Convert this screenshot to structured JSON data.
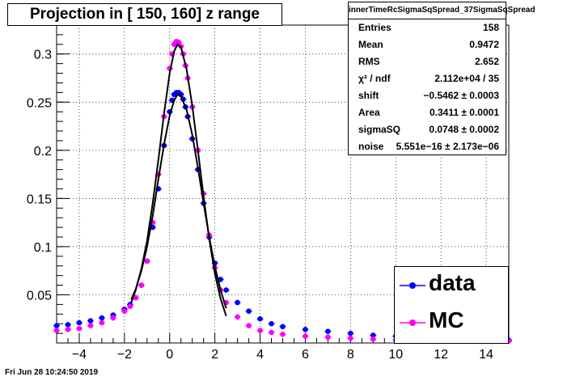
{
  "title": "Projection in [ 150, 160] z range",
  "timestamp": "Fri Jun 28 10:24:50 2019",
  "stats": {
    "name": "innerTimeRcSigmaSqSpread_37SigmaSqSpread",
    "rows": [
      {
        "label": "Entries",
        "value": "158"
      },
      {
        "label": "Mean",
        "value": "0.9472"
      },
      {
        "label": "RMS",
        "value": "2.652"
      },
      {
        "label": "χ² / ndf",
        "value": "2.112e+04 / 35"
      },
      {
        "label": "shift",
        "value": "−0.5462 ± 0.0003"
      },
      {
        "label": "Area",
        "value": "0.3411 ± 0.0001"
      },
      {
        "label": "sigmaSQ",
        "value": "0.0748 ± 0.0002"
      },
      {
        "label": "noise",
        "value": "5.551e−16 ± 2.173e−06"
      }
    ]
  },
  "legend": [
    {
      "label": "data",
      "color": "#0000ff"
    },
    {
      "label": "MC",
      "color": "#ff00ff"
    }
  ],
  "chart_data": {
    "type": "scatter",
    "xlim": [
      -5,
      15
    ],
    "ylim": [
      0,
      0.33
    ],
    "xticks": [
      -4,
      -2,
      0,
      2,
      4,
      6,
      8,
      10,
      12,
      14
    ],
    "xtick_labels": [
      "−4",
      "−2",
      "0",
      "2",
      "4",
      "6",
      "8",
      "10",
      "12",
      "14"
    ],
    "yticks": [
      0.05,
      0.1,
      0.15,
      0.2,
      0.25,
      0.3
    ],
    "ytick_labels": [
      "0.05",
      "0.1",
      "0.15",
      "0.2",
      "0.25",
      "0.3"
    ],
    "grid": true,
    "series": [
      {
        "name": "data",
        "color": "#0000ff",
        "x": [
          -5,
          -4.5,
          -4,
          -3.5,
          -3,
          -2.5,
          -2,
          -1.75,
          -1.5,
          -1.25,
          -1,
          -0.75,
          -0.5,
          -0.25,
          0,
          0.1,
          0.2,
          0.3,
          0.4,
          0.5,
          0.6,
          0.7,
          0.8,
          1.0,
          1.25,
          1.5,
          1.75,
          2.0,
          2.25,
          2.5,
          3.0,
          3.5,
          4.0,
          4.5,
          5.0,
          6.0,
          7.0,
          8.0,
          9.0,
          10.0,
          11.0,
          12.0,
          13.0,
          14.0,
          15.0
        ],
        "y": [
          0.018,
          0.019,
          0.021,
          0.023,
          0.026,
          0.029,
          0.035,
          0.04,
          0.047,
          0.06,
          0.085,
          0.12,
          0.16,
          0.205,
          0.24,
          0.252,
          0.258,
          0.26,
          0.26,
          0.258,
          0.253,
          0.245,
          0.235,
          0.212,
          0.18,
          0.145,
          0.11,
          0.083,
          0.066,
          0.055,
          0.042,
          0.033,
          0.025,
          0.02,
          0.017,
          0.014,
          0.012,
          0.01,
          0.008,
          0.007,
          0.006,
          0.005,
          0.004,
          0.004,
          0.003
        ]
      },
      {
        "name": "MC",
        "color": "#ff00ff",
        "x": [
          -5,
          -4.5,
          -4,
          -3.5,
          -3,
          -2.5,
          -2,
          -1.75,
          -1.5,
          -1.25,
          -1,
          -0.75,
          -0.5,
          -0.25,
          0,
          0.1,
          0.2,
          0.3,
          0.4,
          0.5,
          0.6,
          0.7,
          0.8,
          1.0,
          1.25,
          1.5,
          1.75,
          2.0,
          2.25,
          2.5,
          3.0,
          3.5,
          4.0,
          4.5,
          5.0,
          6.0,
          7.0,
          8.0,
          9.0,
          10.0,
          11.0,
          12.0,
          13.0,
          14.0,
          15.0
        ],
        "y": [
          0.013,
          0.014,
          0.015,
          0.018,
          0.021,
          0.026,
          0.033,
          0.038,
          0.047,
          0.06,
          0.085,
          0.125,
          0.175,
          0.235,
          0.285,
          0.3,
          0.31,
          0.313,
          0.312,
          0.308,
          0.3,
          0.288,
          0.275,
          0.245,
          0.2,
          0.155,
          0.112,
          0.078,
          0.055,
          0.042,
          0.027,
          0.018,
          0.013,
          0.011,
          0.009,
          0.007,
          0.006,
          0.005,
          0.004,
          0.003,
          0.003,
          0.002,
          0.002,
          0.002,
          0.002
        ]
      }
    ],
    "fits": [
      {
        "color": "#000000",
        "x": [
          -1.7,
          -1.5,
          -1.25,
          -1,
          -0.75,
          -0.5,
          -0.25,
          0,
          0.2,
          0.35,
          0.5,
          0.75,
          1.0,
          1.25,
          1.5,
          1.75,
          2.0,
          2.25,
          2.5
        ],
        "y": [
          0.045,
          0.056,
          0.075,
          0.1,
          0.132,
          0.17,
          0.206,
          0.236,
          0.252,
          0.258,
          0.256,
          0.242,
          0.216,
          0.182,
          0.145,
          0.11,
          0.079,
          0.055,
          0.036
        ]
      },
      {
        "color": "#000000",
        "x": [
          -1.7,
          -1.5,
          -1.25,
          -1,
          -0.75,
          -0.5,
          -0.25,
          0,
          0.2,
          0.35,
          0.5,
          0.75,
          1.0,
          1.25,
          1.5,
          1.75,
          2.0,
          2.25,
          2.5
        ],
        "y": [
          0.042,
          0.055,
          0.077,
          0.106,
          0.145,
          0.19,
          0.238,
          0.28,
          0.303,
          0.31,
          0.307,
          0.284,
          0.246,
          0.2,
          0.152,
          0.108,
          0.072,
          0.046,
          0.028
        ]
      }
    ]
  }
}
